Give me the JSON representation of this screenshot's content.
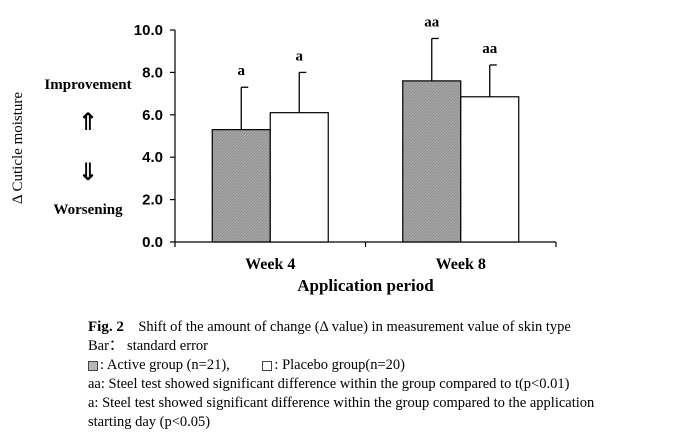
{
  "chart_data": {
    "type": "bar",
    "categories": [
      "Week 4",
      "Week 8"
    ],
    "series": [
      {
        "name": "Active group (n=21)",
        "color": "#b0b0b0",
        "values": [
          5.3,
          7.6
        ],
        "errors": [
          2.0,
          2.0
        ],
        "labels": [
          "a",
          "aa"
        ]
      },
      {
        "name": "Placebo group(n=20)",
        "color": "#ffffff",
        "values": [
          6.1,
          6.85
        ],
        "errors": [
          1.9,
          1.5
        ],
        "labels": [
          "a",
          "aa"
        ]
      }
    ],
    "ylabel": "Δ Cuticle moisture",
    "xlabel": "Application period",
    "ylim": [
      0,
      10
    ],
    "yticks": [
      "0.0",
      "2.0",
      "4.0",
      "6.0",
      "8.0",
      "10.0"
    ],
    "annotations": {
      "improvement": "Improvement",
      "worsening": "Worsening",
      "up_arrow": "⇑",
      "down_arrow": "⇓"
    }
  },
  "caption": {
    "fig_label": "Fig. 2",
    "title": "Shift of the amount of change (Δ value) in measurement value of skin type",
    "bar_note": "Bar： standard error",
    "active_legend": ": Active group (n=21),",
    "placebo_legend": ": Placebo group(n=20)",
    "note_aa": "aa: Steel test showed significant difference within the group compared to t(p<0.01)",
    "note_a_line1": "a: Steel test showed significant difference within the group compared to the application",
    "note_a_line2": "starting day (p<0.05)"
  }
}
